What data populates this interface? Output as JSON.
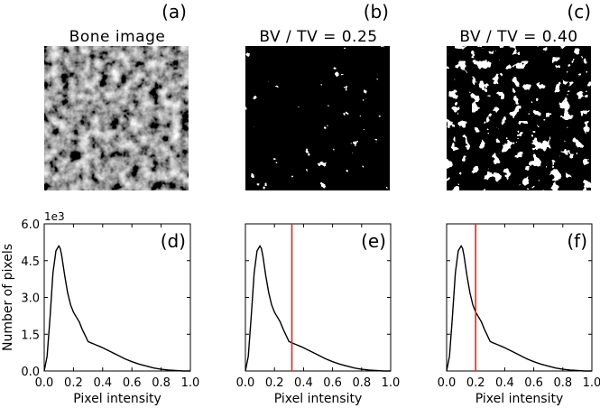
{
  "panels_top": [
    {
      "letter": "(a)",
      "title": "Bone image",
      "kind": "grayscale"
    },
    {
      "letter": "(b)",
      "title": "BV / TV = 0.25",
      "kind": "binary-0.25"
    },
    {
      "letter": "(c)",
      "title": "BV / TV = 0.40",
      "kind": "binary-0.40"
    }
  ],
  "chart_data": [
    {
      "type": "line",
      "panel_label": "(d)",
      "xlabel": "Pixel intensity",
      "ylabel": "Number of pixels",
      "y_exponent_label": "1e3",
      "xlim": [
        0.0,
        1.0
      ],
      "ylim": [
        0.0,
        6.0
      ],
      "xticks": [
        "0.0",
        "0.2",
        "0.4",
        "0.6",
        "0.8",
        "1.0"
      ],
      "yticks": [
        "0.0",
        "1.5",
        "3.0",
        "4.5",
        "6.0"
      ],
      "threshold": null,
      "series": [
        {
          "x": [
            0.0,
            0.02,
            0.04,
            0.06,
            0.08,
            0.1,
            0.11,
            0.12,
            0.14,
            0.16,
            0.18,
            0.2,
            0.22,
            0.24,
            0.26,
            0.28,
            0.3,
            0.32,
            0.34,
            0.36,
            0.38,
            0.4,
            0.45,
            0.5,
            0.55,
            0.6,
            0.65,
            0.7,
            0.75,
            0.8,
            0.85,
            0.9,
            0.95,
            1.0
          ],
          "values": [
            0.0,
            0.6,
            2.2,
            4.0,
            4.9,
            5.1,
            5.0,
            4.7,
            3.9,
            3.2,
            2.7,
            2.4,
            2.2,
            2.0,
            1.7,
            1.45,
            1.2,
            1.15,
            1.1,
            1.05,
            1.0,
            0.95,
            0.8,
            0.65,
            0.5,
            0.38,
            0.28,
            0.2,
            0.12,
            0.07,
            0.04,
            0.02,
            0.0,
            0.0
          ]
        }
      ]
    },
    {
      "type": "line",
      "panel_label": "(e)",
      "xlabel": "Pixel intensity",
      "xlim": [
        0.0,
        1.0
      ],
      "ylim": [
        0.0,
        6.0
      ],
      "xticks": [
        "0.0",
        "0.2",
        "0.4",
        "0.6",
        "0.8",
        "1.0"
      ],
      "threshold": 0.32,
      "threshold_color": "#e32626",
      "series": [
        {
          "x": [
            0.0,
            0.02,
            0.04,
            0.06,
            0.08,
            0.1,
            0.11,
            0.12,
            0.14,
            0.16,
            0.18,
            0.2,
            0.22,
            0.24,
            0.26,
            0.28,
            0.3,
            0.32,
            0.34,
            0.36,
            0.38,
            0.4,
            0.45,
            0.5,
            0.55,
            0.6,
            0.65,
            0.7,
            0.75,
            0.8,
            0.85,
            0.9,
            0.95,
            1.0
          ],
          "values": [
            0.0,
            0.6,
            2.2,
            4.0,
            4.9,
            5.1,
            5.0,
            4.7,
            3.9,
            3.2,
            2.7,
            2.4,
            2.2,
            2.0,
            1.7,
            1.45,
            1.2,
            1.15,
            1.1,
            1.05,
            1.0,
            0.95,
            0.8,
            0.65,
            0.5,
            0.38,
            0.28,
            0.2,
            0.12,
            0.07,
            0.04,
            0.02,
            0.0,
            0.0
          ]
        }
      ]
    },
    {
      "type": "line",
      "panel_label": "(f)",
      "xlabel": "Pixel intensity",
      "xlim": [
        0.0,
        1.0
      ],
      "ylim": [
        0.0,
        6.0
      ],
      "xticks": [
        "0.0",
        "0.2",
        "0.4",
        "0.6",
        "0.8",
        "1.0"
      ],
      "threshold": 0.2,
      "threshold_color": "#e32626",
      "series": [
        {
          "x": [
            0.0,
            0.02,
            0.04,
            0.06,
            0.08,
            0.1,
            0.11,
            0.12,
            0.14,
            0.16,
            0.18,
            0.2,
            0.22,
            0.24,
            0.26,
            0.28,
            0.3,
            0.32,
            0.34,
            0.36,
            0.38,
            0.4,
            0.45,
            0.5,
            0.55,
            0.6,
            0.65,
            0.7,
            0.75,
            0.8,
            0.85,
            0.9,
            0.95,
            1.0
          ],
          "values": [
            0.0,
            0.6,
            2.2,
            4.0,
            4.9,
            5.1,
            5.0,
            4.7,
            3.9,
            3.2,
            2.7,
            2.4,
            2.2,
            2.0,
            1.7,
            1.45,
            1.2,
            1.15,
            1.1,
            1.05,
            1.0,
            0.95,
            0.8,
            0.65,
            0.5,
            0.38,
            0.28,
            0.2,
            0.12,
            0.07,
            0.04,
            0.02,
            0.0,
            0.0
          ]
        }
      ]
    }
  ]
}
